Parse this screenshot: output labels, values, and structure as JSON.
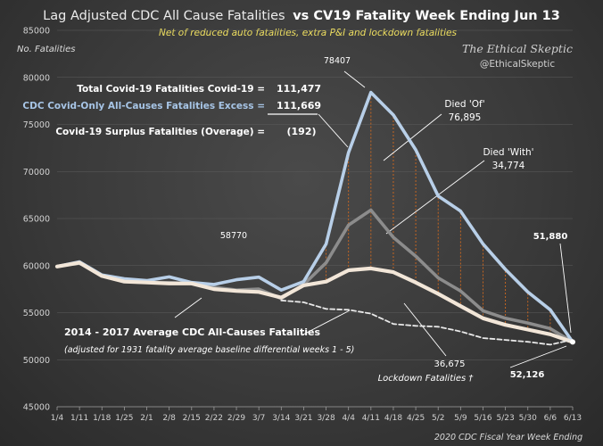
{
  "chart_data": {
    "type": "line",
    "title_part1": "Lag Adjusted CDC All Cause Fatalities",
    "title_part2": "vs CV19 Fatality Week Ending Jun 13",
    "subtitle": "Net of reduced auto fatalities, extra P&I and lockdown fatalities",
    "ylabel": "No. Fatalities",
    "xlabel": "2020 CDC Fiscal Year Week Ending",
    "brand_line1": "The Ethical Skeptic",
    "brand_line2": "@EthicalSkeptic",
    "ylim": [
      45000,
      85000
    ],
    "y_ticks": [
      45000,
      50000,
      55000,
      60000,
      65000,
      70000,
      75000,
      80000,
      85000
    ],
    "categories": [
      "1/4",
      "1/11",
      "1/18",
      "1/25",
      "2/1",
      "2/8",
      "2/15",
      "2/22",
      "2/29",
      "3/7",
      "3/14",
      "3/21",
      "3/28",
      "4/4",
      "4/11",
      "4/18",
      "4/25",
      "5/2",
      "5/9",
      "5/16",
      "5/23",
      "5/30",
      "6/6",
      "6/13"
    ],
    "series": [
      {
        "name": "Died 'Of'",
        "color": "#b8cfe8",
        "values": [
          59900,
          60400,
          59000,
          58600,
          58400,
          58800,
          58200,
          58000,
          58500,
          58770,
          57400,
          58300,
          62300,
          72000,
          78407,
          76000,
          72300,
          67400,
          65800,
          62300,
          59600,
          57200,
          55300,
          51880
        ]
      },
      {
        "name": "Died 'With'",
        "color": "#8c8c8c",
        "values": [
          59900,
          60300,
          58900,
          58300,
          58200,
          58200,
          58100,
          57700,
          57400,
          57500,
          56500,
          58000,
          60300,
          64300,
          65900,
          63000,
          61000,
          58700,
          57300,
          55200,
          54400,
          53900,
          53300,
          51880
        ]
      },
      {
        "series_role": "covid_only",
        "color": "#f2e6d8",
        "values": [
          59900,
          60300,
          58900,
          58300,
          58200,
          58100,
          58100,
          57500,
          57300,
          57200,
          56600,
          57900,
          58300,
          59500,
          59700,
          59300,
          58200,
          57000,
          55700,
          54400,
          53700,
          53200,
          52700,
          51880
        ]
      },
      {
        "series_role": "baseline_dashed",
        "color": "#e8e8e8",
        "values": [
          null,
          null,
          null,
          null,
          null,
          null,
          null,
          null,
          null,
          null,
          56300,
          56100,
          55400,
          55300,
          54900,
          53800,
          53600,
          53500,
          53000,
          52300,
          52100,
          51900,
          51600,
          52126
        ]
      }
    ],
    "stats": {
      "row1_label": "Total Covid-19 Fatalities Covid-19 =",
      "row1_value": "111,477",
      "row2_label": "CDC Covid-Only All-Causes Fatalities Excess =",
      "row2_value": "111,669",
      "row3_label": "Covid-19 Surplus Fatalities (Overage) =",
      "row3_value": "(192)"
    },
    "annotations": {
      "peak_label": "78407",
      "mar7_label": "58770",
      "died_of_label": "Died 'Of'",
      "died_of_value": "76,895",
      "died_with_label": "Died 'With'",
      "died_with_value": "34,774",
      "end_value_top": "51,880",
      "end_value_bottom": "52,126",
      "lockdown_value": "36,675",
      "lockdown_label": "Lockdown Fatalities †",
      "avg_label_line1": "2014 - 2017 Average CDC All-Causes Fatalities",
      "avg_label_line2": "(adjusted for 1931 fatality average baseline differential weeks 1 - 5)"
    }
  }
}
